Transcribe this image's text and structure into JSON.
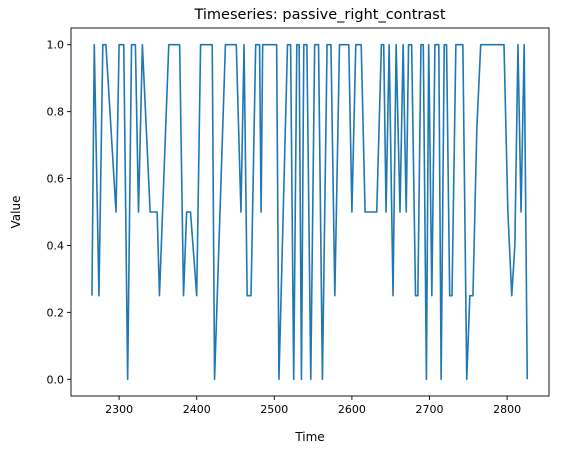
{
  "chart_data": {
    "type": "line",
    "title": "Timeseries: passive_right_contrast",
    "xlabel": "Time",
    "ylabel": "Value",
    "xlim": [
      2238,
      2854
    ],
    "ylim": [
      -0.05,
      1.05
    ],
    "xticks": [
      2300,
      2400,
      2500,
      2600,
      2700,
      2800
    ],
    "yticks": [
      0.0,
      0.2,
      0.4,
      0.6,
      0.8,
      1.0
    ],
    "ytick_labels": [
      "0.0",
      "0.2",
      "0.4",
      "0.6",
      "0.8",
      "1.0"
    ],
    "grid": false,
    "color": "#1f77b4",
    "series": [
      {
        "x": [
          2265,
          2268,
          2274,
          2279,
          2283,
          2296,
          2300,
          2306,
          2311,
          2316,
          2321,
          2325,
          2330,
          2340,
          2345,
          2349,
          2352,
          2364,
          2369,
          2378,
          2383,
          2387,
          2392,
          2400,
          2405,
          2420,
          2423,
          2437,
          2442,
          2451,
          2457,
          2461,
          2465,
          2470,
          2476,
          2481,
          2483,
          2485,
          2489,
          2493,
          2497,
          2503,
          2506,
          2517,
          2521,
          2525,
          2529,
          2532,
          2535,
          2538,
          2542,
          2547,
          2552,
          2557,
          2562,
          2568,
          2573,
          2578,
          2584,
          2591,
          2596,
          2600,
          2605,
          2612,
          2617,
          2622,
          2627,
          2632,
          2638,
          2641,
          2644,
          2648,
          2653,
          2657,
          2662,
          2666,
          2670,
          2673,
          2677,
          2682,
          2685,
          2689,
          2692,
          2696,
          2699,
          2703,
          2707,
          2712,
          2715,
          2719,
          2722,
          2726,
          2729,
          2734,
          2739,
          2743,
          2748,
          2752,
          2756,
          2761,
          2766,
          2771,
          2776,
          2781,
          2786,
          2791,
          2796,
          2801,
          2806,
          2810,
          2814,
          2818,
          2822,
          2826
        ],
        "y": [
          0.25,
          1.0,
          0.25,
          1.0,
          1.0,
          0.5,
          1.0,
          1.0,
          0.0,
          1.0,
          1.0,
          0.5,
          1.0,
          0.5,
          0.5,
          0.5,
          0.25,
          1.0,
          1.0,
          1.0,
          0.25,
          0.5,
          0.5,
          0.25,
          1.0,
          1.0,
          0.0,
          1.0,
          1.0,
          1.0,
          0.5,
          1.0,
          0.25,
          0.25,
          1.0,
          1.0,
          0.5,
          1.0,
          1.0,
          1.0,
          1.0,
          1.0,
          0.0,
          1.0,
          1.0,
          0.0,
          1.0,
          1.0,
          0.0,
          1.0,
          1.0,
          0.0,
          1.0,
          1.0,
          0.0,
          1.0,
          1.0,
          0.25,
          1.0,
          1.0,
          1.0,
          0.5,
          1.0,
          1.0,
          0.5,
          0.5,
          0.5,
          0.5,
          1.0,
          1.0,
          0.5,
          1.0,
          0.25,
          1.0,
          0.5,
          1.0,
          0.5,
          1.0,
          1.0,
          0.25,
          0.25,
          1.0,
          1.0,
          0.0,
          1.0,
          0.25,
          1.0,
          1.0,
          0.0,
          1.0,
          1.0,
          0.25,
          0.25,
          1.0,
          1.0,
          1.0,
          0.0,
          0.25,
          0.25,
          0.75,
          1.0,
          1.0,
          1.0,
          1.0,
          1.0,
          1.0,
          1.0,
          0.5,
          0.25,
          0.4,
          1.0,
          0.5,
          1.0,
          0.0
        ]
      }
    ]
  }
}
